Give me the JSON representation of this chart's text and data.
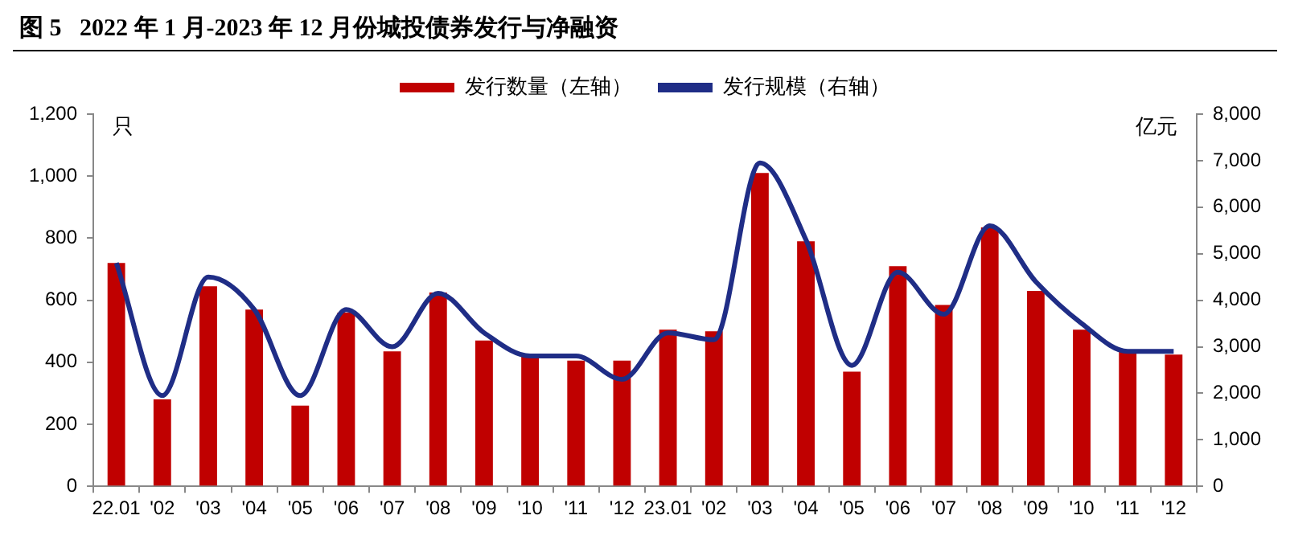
{
  "chart_data": {
    "type": "bar",
    "title": "图 5   2022 年 1 月-2023 年 12 月份城投债券发行与净融资",
    "ylabel": "只",
    "y2label": "亿元",
    "categories": [
      "22.01",
      "'02",
      "'03",
      "'04",
      "'05",
      "'06",
      "'07",
      "'08",
      "'09",
      "'10",
      "'11",
      "'12",
      "23.01",
      "'02",
      "'03",
      "'04",
      "'05",
      "'06",
      "'07",
      "'08",
      "'09",
      "'10",
      "'11",
      "'12"
    ],
    "series": [
      {
        "name": "发行数量（左轴）",
        "color": "#c00000",
        "values": [
          720,
          280,
          645,
          570,
          260,
          560,
          435,
          625,
          470,
          420,
          405,
          405,
          505,
          500,
          1010,
          790,
          370,
          710,
          585,
          835,
          630,
          505,
          435,
          425
        ]
      },
      {
        "name": "发行规模（右轴）",
        "type": "line",
        "axis": "y2",
        "color": "#1f2d86",
        "values": [
          4800,
          1950,
          4500,
          3800,
          1950,
          3800,
          3000,
          4150,
          3300,
          2800,
          2800,
          2300,
          3300,
          3150,
          6950,
          5300,
          2600,
          4600,
          3700,
          5600,
          4400,
          3500,
          2900,
          2900
        ]
      }
    ],
    "ylim": [
      0,
      1200
    ],
    "yticks": [
      0,
      200,
      400,
      600,
      800,
      {
        "value": 1000,
        "label": "1,000"
      },
      {
        "value": 1200,
        "label": "1,200"
      }
    ],
    "y2lim": [
      0,
      8000
    ],
    "y2ticks": [
      0,
      {
        "value": 1000,
        "label": "1,000"
      },
      {
        "value": 2000,
        "label": "2,000"
      },
      {
        "value": 3000,
        "label": "3,000"
      },
      {
        "value": 4000,
        "label": "4,000"
      },
      {
        "value": 5000,
        "label": "5,000"
      },
      {
        "value": 6000,
        "label": "6,000"
      },
      {
        "value": 7000,
        "label": "7,000"
      },
      {
        "value": 8000,
        "label": "8,000"
      }
    ],
    "grid": false,
    "legend": "top",
    "marker": "none",
    "line_style": "solid"
  }
}
